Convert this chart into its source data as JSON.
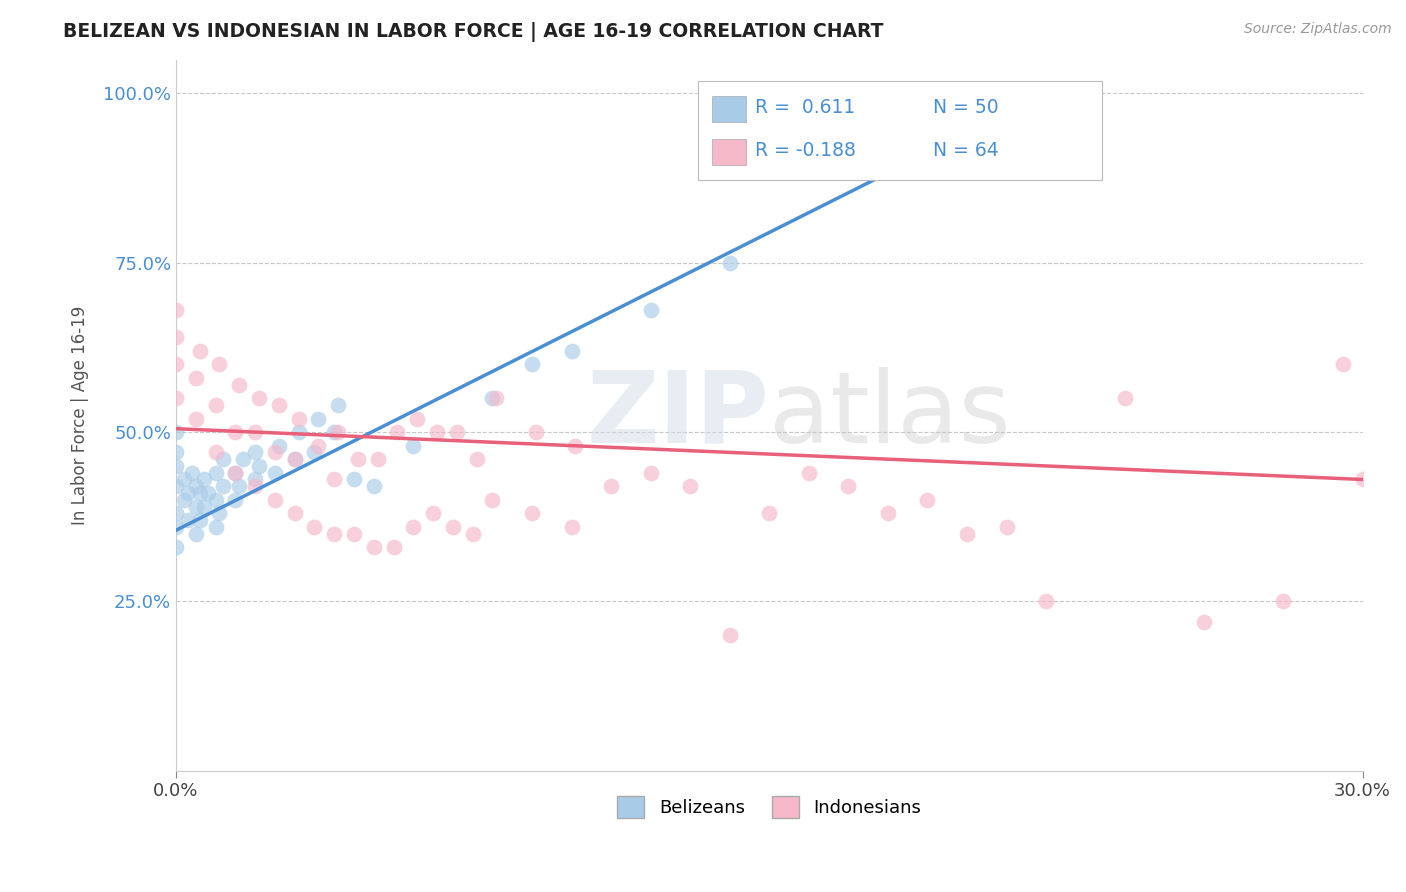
{
  "title": "BELIZEAN VS INDONESIAN IN LABOR FORCE | AGE 16-19 CORRELATION CHART",
  "source_text": "Source: ZipAtlas.com",
  "ylabel": "In Labor Force | Age 16-19",
  "xmin": 0.0,
  "xmax": 0.3,
  "ymin": 0.0,
  "ymax": 1.05,
  "x_tick_labels": [
    "0.0%",
    "30.0%"
  ],
  "y_tick_labels": [
    "25.0%",
    "50.0%",
    "75.0%",
    "100.0%"
  ],
  "y_tick_values": [
    0.25,
    0.5,
    0.75,
    1.0
  ],
  "belizean_color": "#a8cce8",
  "indonesian_color": "#f5b8c8",
  "belizean_line_color": "#4a8fd4",
  "indonesian_line_color": "#e8607a",
  "legend_R_belizean": "0.611",
  "legend_N_belizean": "50",
  "legend_R_indonesian": "-0.188",
  "legend_N_indonesian": "64",
  "watermark_zip": "ZIP",
  "watermark_atlas": "atlas",
  "background_color": "#ffffff",
  "grid_color": "#c8c8c8",
  "belizean_scatter_x": [
    0.0,
    0.0,
    0.0,
    0.0,
    0.0,
    0.0,
    0.0,
    0.002,
    0.002,
    0.003,
    0.003,
    0.004,
    0.005,
    0.005,
    0.005,
    0.006,
    0.006,
    0.007,
    0.007,
    0.008,
    0.01,
    0.01,
    0.01,
    0.011,
    0.012,
    0.012,
    0.015,
    0.015,
    0.016,
    0.017,
    0.02,
    0.02,
    0.021,
    0.025,
    0.026,
    0.03,
    0.031,
    0.035,
    0.036,
    0.04,
    0.041,
    0.045,
    0.05,
    0.06,
    0.08,
    0.09,
    0.1,
    0.12,
    0.14,
    0.22
  ],
  "belizean_scatter_y": [
    0.38,
    0.42,
    0.45,
    0.47,
    0.5,
    0.33,
    0.36,
    0.4,
    0.43,
    0.37,
    0.41,
    0.44,
    0.35,
    0.39,
    0.42,
    0.37,
    0.41,
    0.39,
    0.43,
    0.41,
    0.36,
    0.4,
    0.44,
    0.38,
    0.42,
    0.46,
    0.4,
    0.44,
    0.42,
    0.46,
    0.43,
    0.47,
    0.45,
    0.44,
    0.48,
    0.46,
    0.5,
    0.47,
    0.52,
    0.5,
    0.54,
    0.43,
    0.42,
    0.48,
    0.55,
    0.6,
    0.62,
    0.68,
    0.75,
    0.97
  ],
  "indonesian_scatter_x": [
    0.0,
    0.0,
    0.0,
    0.0,
    0.005,
    0.005,
    0.006,
    0.01,
    0.01,
    0.011,
    0.015,
    0.015,
    0.016,
    0.02,
    0.02,
    0.021,
    0.025,
    0.025,
    0.026,
    0.03,
    0.03,
    0.031,
    0.035,
    0.036,
    0.04,
    0.04,
    0.041,
    0.045,
    0.046,
    0.05,
    0.051,
    0.055,
    0.056,
    0.06,
    0.061,
    0.065,
    0.066,
    0.07,
    0.071,
    0.075,
    0.076,
    0.08,
    0.081,
    0.09,
    0.091,
    0.1,
    0.101,
    0.11,
    0.12,
    0.13,
    0.14,
    0.15,
    0.16,
    0.17,
    0.18,
    0.19,
    0.2,
    0.21,
    0.22,
    0.24,
    0.26,
    0.28,
    0.295,
    0.3
  ],
  "indonesian_scatter_y": [
    0.55,
    0.6,
    0.64,
    0.68,
    0.52,
    0.58,
    0.62,
    0.47,
    0.54,
    0.6,
    0.44,
    0.5,
    0.57,
    0.42,
    0.5,
    0.55,
    0.4,
    0.47,
    0.54,
    0.38,
    0.46,
    0.52,
    0.36,
    0.48,
    0.35,
    0.43,
    0.5,
    0.35,
    0.46,
    0.33,
    0.46,
    0.33,
    0.5,
    0.36,
    0.52,
    0.38,
    0.5,
    0.36,
    0.5,
    0.35,
    0.46,
    0.4,
    0.55,
    0.38,
    0.5,
    0.36,
    0.48,
    0.42,
    0.44,
    0.42,
    0.2,
    0.38,
    0.44,
    0.42,
    0.38,
    0.4,
    0.35,
    0.36,
    0.25,
    0.55,
    0.22,
    0.25,
    0.6,
    0.43
  ]
}
